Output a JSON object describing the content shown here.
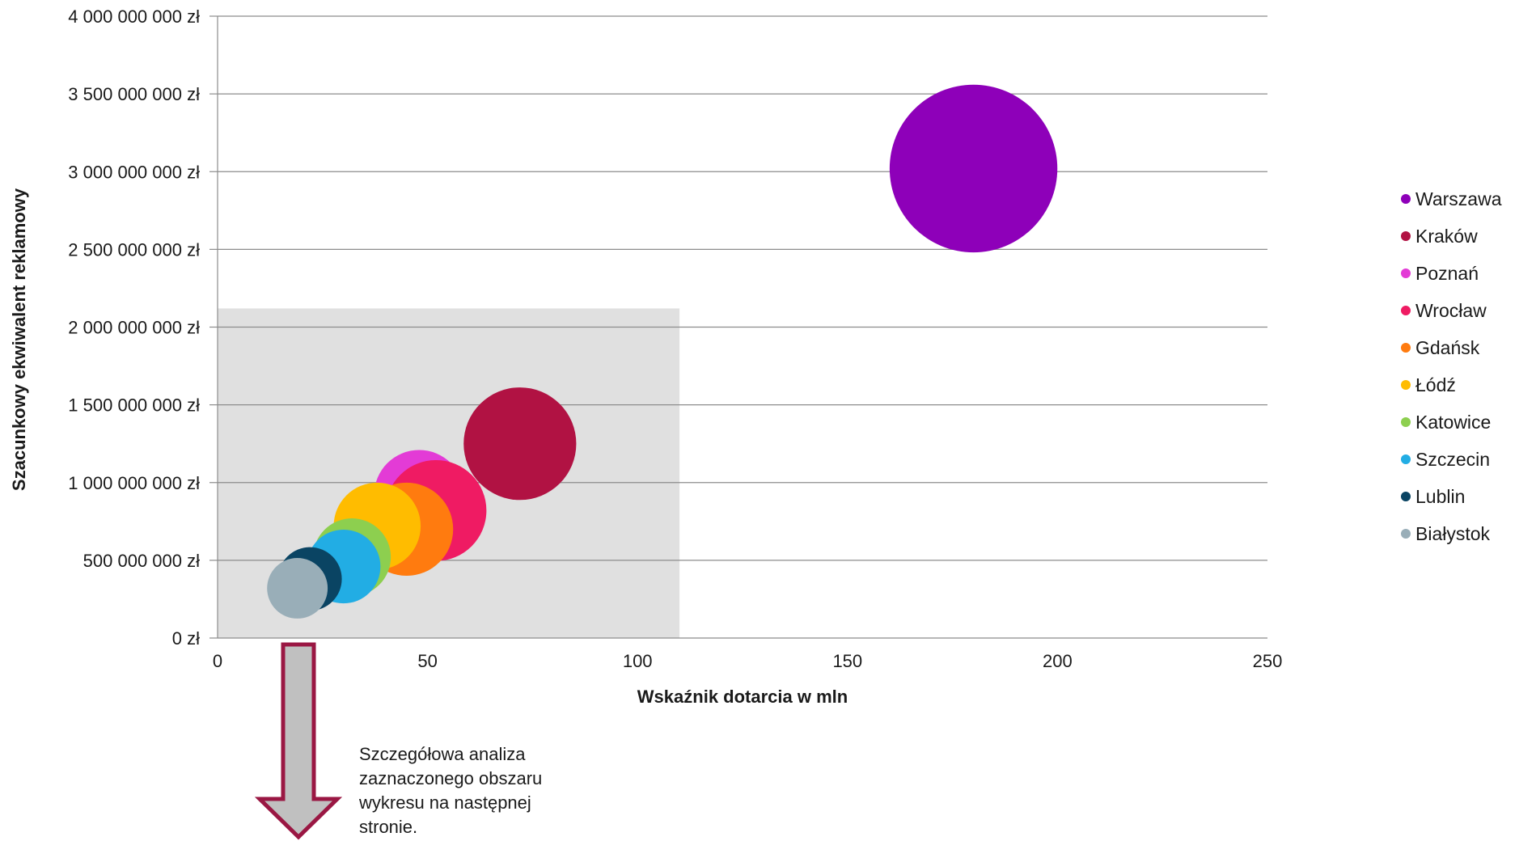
{
  "chart_data": {
    "type": "bubble",
    "xlabel": "Wskaźnik dotarcia w mln",
    "ylabel": "Szacunkowy ekwiwalent reklamowy",
    "xlim": [
      0,
      250
    ],
    "ylim": [
      0,
      4000000000
    ],
    "x_ticks": [
      "0",
      "50",
      "100",
      "150",
      "200",
      "250"
    ],
    "y_ticks": [
      "0 zł",
      "500 000 000 zł",
      "1 000 000 000 zł",
      "1 500 000 000 zł",
      "2 000 000 000 zł",
      "2 500 000 000 zł",
      "3 000 000 000 zł",
      "3 500 000 000 zł",
      "4 000 000 000 zł"
    ],
    "grid": true,
    "legend_position": "right",
    "highlight_region": {
      "x": [
        0,
        110
      ],
      "y": [
        0,
        2120000000
      ],
      "color": "#e0e0e0"
    },
    "series": [
      {
        "name": "Warszawa",
        "x": 180,
        "y": 3020000000,
        "size": 21.6,
        "color": "#8e00b9"
      },
      {
        "name": "Kraków",
        "x": 72,
        "y": 1250000000,
        "size": 14.5,
        "color": "#b11243"
      },
      {
        "name": "Poznań",
        "x": 48,
        "y": 920000000,
        "size": 11.6,
        "color": "#e33bd6"
      },
      {
        "name": "Wrocław",
        "x": 52,
        "y": 820000000,
        "size": 13.0,
        "color": "#ef1b63"
      },
      {
        "name": "Gdańsk",
        "x": 45,
        "y": 700000000,
        "size": 12.0,
        "color": "#ff7b0f"
      },
      {
        "name": "Łódź",
        "x": 38,
        "y": 720000000,
        "size": 11.2,
        "color": "#ffbc00"
      },
      {
        "name": "Katowice",
        "x": 32,
        "y": 520000000,
        "size": 10.0,
        "color": "#8dcf4f"
      },
      {
        "name": "Szczecin",
        "x": 30,
        "y": 460000000,
        "size": 9.5,
        "color": "#22ade4"
      },
      {
        "name": "Lublin",
        "x": 22,
        "y": 380000000,
        "size": 8.2,
        "color": "#0a4463"
      },
      {
        "name": "Białystok",
        "x": 19,
        "y": 320000000,
        "size": 7.8,
        "color": "#99aeb8"
      }
    ]
  },
  "annotation": {
    "lines": [
      "Szczegółowa analiza",
      "zaznaczonego obszaru",
      "wykresu na następnej",
      "stronie."
    ],
    "arrow_fill": "#c0c0c0",
    "arrow_stroke": "#9a1743"
  }
}
